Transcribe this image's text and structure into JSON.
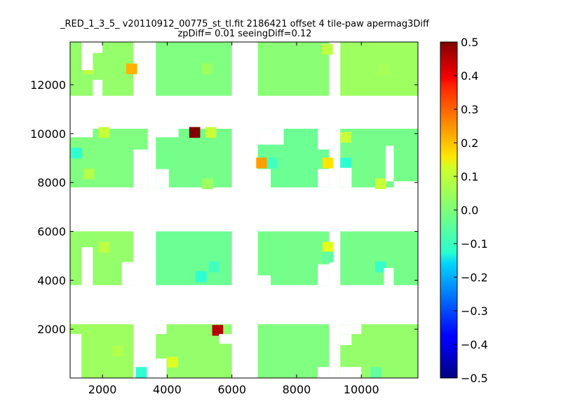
{
  "chart_data": {
    "type": "heatmap",
    "title": "_RED_1_3_5_ v20110912_00775_st_tl.fit 2186421 offset 4 tile-paw apermag3Diff",
    "subtitle": "zpDiff= 0.01 seeingDiff=0.12",
    "xlabel": "",
    "ylabel": "",
    "xlim": [
      1000,
      11750
    ],
    "ylim": [
      0,
      13750
    ],
    "x_ticks": [
      2000,
      4000,
      6000,
      8000,
      10000
    ],
    "x_tick_labels": [
      "2000",
      "4000",
      "6000",
      "8000",
      "10000"
    ],
    "y_ticks": [
      2000,
      4000,
      6000,
      8000,
      10000,
      12000
    ],
    "y_tick_labels": [
      "2000",
      "4000",
      "6000",
      "8000",
      "10000",
      "12000"
    ],
    "colorbar": {
      "colormap": "jet",
      "range": [
        -0.5,
        0.5
      ],
      "ticks": [
        0.5,
        0.4,
        0.3,
        0.2,
        0.1,
        0.0,
        -0.1,
        -0.2,
        -0.3,
        -0.4,
        -0.5
      ],
      "tick_labels": [
        "0.5",
        "0.4",
        "0.3",
        "0.2",
        "0.1",
        "0.0",
        "−0.1",
        "−0.2",
        "−0.3",
        "−0.4",
        "−0.5"
      ]
    },
    "cell_size": [
      340,
      440
    ],
    "blocks": [
      {
        "x": [
          1000,
          2950
        ],
        "y": [
          0,
          2200
        ],
        "value": 0.03
      },
      {
        "x": [
          3650,
          6000
        ],
        "y": [
          0,
          2200
        ],
        "value": 0.02
      },
      {
        "x": [
          6800,
          9000
        ],
        "y": [
          0,
          2200
        ],
        "value": 0.0
      },
      {
        "x": [
          9350,
          11750
        ],
        "y": [
          0,
          2200
        ],
        "value": 0.02
      },
      {
        "x": [
          1000,
          2950
        ],
        "y": [
          3800,
          6000
        ],
        "value": 0.02
      },
      {
        "x": [
          3650,
          6000
        ],
        "y": [
          3800,
          6000
        ],
        "value": -0.02
      },
      {
        "x": [
          6800,
          9000
        ],
        "y": [
          3800,
          6000
        ],
        "value": -0.01
      },
      {
        "x": [
          9350,
          11750
        ],
        "y": [
          3800,
          6000
        ],
        "value": -0.01
      },
      {
        "x": [
          1000,
          3400
        ],
        "y": [
          7800,
          10200
        ],
        "value": 0.0
      },
      {
        "x": [
          3650,
          6000
        ],
        "y": [
          7800,
          10200
        ],
        "value": -0.01
      },
      {
        "x": [
          6800,
          9000
        ],
        "y": [
          7800,
          10200
        ],
        "value": -0.02
      },
      {
        "x": [
          9350,
          11750
        ],
        "y": [
          7800,
          10200
        ],
        "value": -0.01
      },
      {
        "x": [
          1000,
          2950
        ],
        "y": [
          11550,
          13750
        ],
        "value": 0.02
      },
      {
        "x": [
          3650,
          6000
        ],
        "y": [
          11550,
          13750
        ],
        "value": 0.0
      },
      {
        "x": [
          6800,
          9000
        ],
        "y": [
          11550,
          13750
        ],
        "value": 0.01
      },
      {
        "x": [
          9350,
          11750
        ],
        "y": [
          11550,
          13750
        ],
        "value": 0.03
      }
    ],
    "blanks": [
      {
        "x": [
          1000,
          1350
        ],
        "y": [
          0,
          1800
        ]
      },
      {
        "x": [
          3650,
          3980
        ],
        "y": [
          1800,
          2200
        ]
      },
      {
        "x": [
          3650,
          3980
        ],
        "y": [
          0,
          800
        ]
      },
      {
        "x": [
          5600,
          6000
        ],
        "y": [
          1400,
          1800
        ]
      },
      {
        "x": [
          8650,
          9000
        ],
        "y": [
          0,
          450
        ]
      },
      {
        "x": [
          9350,
          10000
        ],
        "y": [
          1800,
          2200
        ]
      },
      {
        "x": [
          9350,
          9700
        ],
        "y": [
          1350,
          1800
        ]
      },
      {
        "x": [
          9350,
          10000
        ],
        "y": [
          0,
          450
        ]
      },
      {
        "x": [
          1350,
          1700
        ],
        "y": [
          3800,
          5350
        ]
      },
      {
        "x": [
          2600,
          2950
        ],
        "y": [
          3800,
          4750
        ]
      },
      {
        "x": [
          6800,
          7200
        ],
        "y": [
          3800,
          4200
        ]
      },
      {
        "x": [
          8650,
          9000
        ],
        "y": [
          3800,
          4650
        ]
      },
      {
        "x": [
          10700,
          11000
        ],
        "y": [
          3800,
          4500
        ]
      },
      {
        "x": [
          1000,
          1700
        ],
        "y": [
          10200,
          9850
        ]
      },
      {
        "x": [
          2600,
          3400
        ],
        "y": [
          10200,
          10200
        ]
      },
      {
        "x": [
          3650,
          4350
        ],
        "y": [
          9850,
          10200
        ]
      },
      {
        "x": [
          3650,
          4050
        ],
        "y": [
          7800,
          8550
        ]
      },
      {
        "x": [
          6800,
          7600
        ],
        "y": [
          9550,
          10200
        ]
      },
      {
        "x": [
          6800,
          7200
        ],
        "y": [
          7800,
          8550
        ]
      },
      {
        "x": [
          8650,
          9000
        ],
        "y": [
          7800,
          8550
        ]
      },
      {
        "x": [
          8650,
          9000
        ],
        "y": [
          9350,
          10200
        ]
      },
      {
        "x": [
          9350,
          9700
        ],
        "y": [
          7800,
          8600
        ]
      },
      {
        "x": [
          9350,
          10000
        ],
        "y": [
          10200,
          10200
        ]
      },
      {
        "x": [
          10750,
          11000
        ],
        "y": [
          8050,
          9500
        ]
      },
      {
        "x": [
          11000,
          11750
        ],
        "y": [
          7800,
          8050
        ]
      },
      {
        "x": [
          2950,
          3400
        ],
        "y": [
          7800,
          9350
        ]
      },
      {
        "x": [
          1350,
          1700
        ],
        "y": [
          12600,
          13750
        ]
      },
      {
        "x": [
          1700,
          2000
        ],
        "y": [
          13300,
          13750
        ]
      },
      {
        "x": [
          1700,
          2000
        ],
        "y": [
          11550,
          12200
        ]
      }
    ],
    "cells": [
      {
        "x": 1570,
        "y": 12650,
        "value": 0.06
      },
      {
        "x": 2900,
        "y": 12650,
        "value": 0.2
      },
      {
        "x": 8950,
        "y": 13450,
        "value": 0.06
      },
      {
        "x": 5230,
        "y": 12650,
        "value": 0.03
      },
      {
        "x": 10700,
        "y": 12650,
        "value": 0.04
      },
      {
        "x": 4850,
        "y": 10050,
        "value": 0.5
      },
      {
        "x": 5350,
        "y": 10050,
        "value": 0.07
      },
      {
        "x": 2050,
        "y": 10050,
        "value": 0.07
      },
      {
        "x": 1200,
        "y": 9200,
        "value": -0.08
      },
      {
        "x": 6920,
        "y": 8800,
        "value": 0.22
      },
      {
        "x": 7250,
        "y": 8800,
        "value": -0.06
      },
      {
        "x": 8970,
        "y": 8800,
        "value": 0.15
      },
      {
        "x": 9520,
        "y": 8800,
        "value": -0.08
      },
      {
        "x": 9520,
        "y": 9850,
        "value": 0.07
      },
      {
        "x": 10600,
        "y": 7950,
        "value": 0.07
      },
      {
        "x": 1580,
        "y": 8350,
        "value": 0.05
      },
      {
        "x": 5250,
        "y": 7950,
        "value": 0.03
      },
      {
        "x": 2050,
        "y": 5350,
        "value": 0.06
      },
      {
        "x": 8970,
        "y": 5350,
        "value": 0.1
      },
      {
        "x": 8970,
        "y": 4950,
        "value": -0.03
      },
      {
        "x": 5450,
        "y": 4550,
        "value": -0.06
      },
      {
        "x": 5050,
        "y": 4150,
        "value": -0.08
      },
      {
        "x": 10600,
        "y": 4550,
        "value": -0.07
      },
      {
        "x": 5560,
        "y": 1950,
        "value": 0.45
      },
      {
        "x": 3200,
        "y": 230,
        "value": -0.08
      },
      {
        "x": 4170,
        "y": 650,
        "value": 0.09
      },
      {
        "x": 2480,
        "y": 1100,
        "value": 0.05
      },
      {
        "x": 10450,
        "y": 230,
        "value": -0.03
      }
    ]
  }
}
